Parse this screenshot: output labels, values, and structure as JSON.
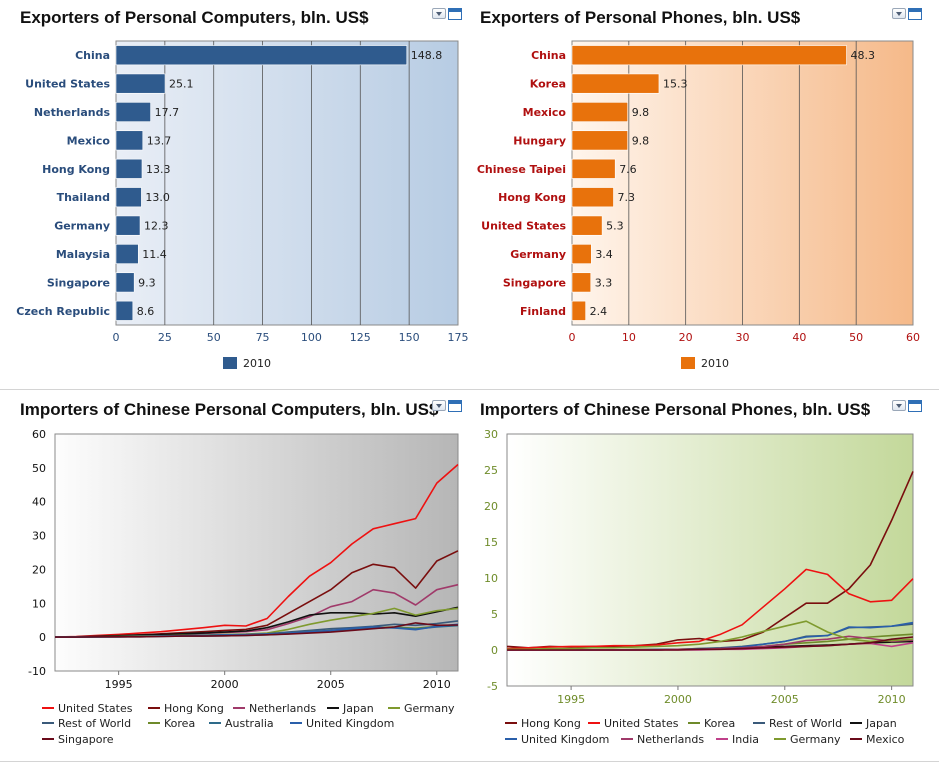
{
  "chart_data": [
    {
      "type": "bar",
      "orientation": "horizontal",
      "title": "Exporters of Personal Computers, bln. US$",
      "categories": [
        "China",
        "United States",
        "Netherlands",
        "Mexico",
        "Hong Kong",
        "Thailand",
        "Germany",
        "Malaysia",
        "Singapore",
        "Czech Republic"
      ],
      "series": [
        {
          "name": "2010",
          "values": [
            148.8,
            25.1,
            17.7,
            13.7,
            13.3,
            13.0,
            12.3,
            11.4,
            9.3,
            8.6
          ]
        }
      ],
      "value_labels": [
        "148.8",
        "25.1",
        "17.7",
        "13.7",
        "13.3",
        "13.0",
        "12.3",
        "11.4",
        "9.3",
        "8.6"
      ],
      "xlim": [
        0,
        175
      ],
      "xticks": [
        0,
        25,
        50,
        75,
        100,
        125,
        150,
        175
      ],
      "grid": true,
      "legend": "bottom",
      "colors": {
        "bar": "#2f5b8e",
        "label": "#2a4d7c",
        "bg_start": "#e9eef6",
        "bg_end": "#b7cce3"
      }
    },
    {
      "type": "bar",
      "orientation": "horizontal",
      "title": "Exporters of Personal Phones, bln. US$",
      "categories": [
        "China",
        "Korea",
        "Mexico",
        "Hungary",
        "Chinese Taipei",
        "Hong Kong",
        "United States",
        "Germany",
        "Singapore",
        "Finland"
      ],
      "series": [
        {
          "name": "2010",
          "values": [
            48.3,
            15.3,
            9.8,
            9.8,
            7.6,
            7.3,
            5.3,
            3.4,
            3.3,
            2.4
          ]
        }
      ],
      "value_labels": [
        "48.3",
        "15.3",
        "9.8",
        "9.8",
        "7.6",
        "7.3",
        "5.3",
        "3.4",
        "3.3",
        "2.4"
      ],
      "xlim": [
        0,
        60
      ],
      "xticks": [
        0,
        10,
        20,
        30,
        40,
        50,
        60
      ],
      "grid": true,
      "legend": "bottom",
      "colors": {
        "bar": "#e8720c",
        "label": "#b01010",
        "bg_start": "#fff5ec",
        "bg_end": "#f5b989"
      }
    },
    {
      "type": "line",
      "title": "Importers of Chinese Personal Computers, bln. US$",
      "x": [
        1992,
        1993,
        1994,
        1995,
        1996,
        1997,
        1998,
        1999,
        2000,
        2001,
        2002,
        2003,
        2004,
        2005,
        2006,
        2007,
        2008,
        2009,
        2010,
        2011
      ],
      "xlim": [
        1992,
        2011
      ],
      "xticks": [
        1995,
        2000,
        2005,
        2010
      ],
      "ylim": [
        -10,
        60
      ],
      "yticks": [
        -10,
        0,
        10,
        20,
        30,
        40,
        50,
        60
      ],
      "grid": false,
      "legend": "bottom",
      "series": [
        {
          "name": "United States",
          "color": "#ee1111",
          "values": [
            0,
            0.2,
            0.5,
            0.8,
            1.2,
            1.6,
            2.2,
            2.8,
            3.5,
            3.3,
            5.5,
            12,
            18,
            22,
            27.5,
            32,
            33.5,
            35,
            45.5,
            51
          ]
        },
        {
          "name": "Hong Kong",
          "color": "#7a0e0e",
          "values": [
            0,
            0.1,
            0.3,
            0.5,
            0.7,
            1,
            1.3,
            1.6,
            2,
            2.3,
            3.5,
            7,
            10.5,
            14,
            19,
            21.5,
            20.5,
            14.5,
            22.5,
            25.5
          ]
        },
        {
          "name": "Netherlands",
          "color": "#a03a6a",
          "values": [
            0,
            0.1,
            0.2,
            0.3,
            0.5,
            0.7,
            0.9,
            1.1,
            1.4,
            1.6,
            2.2,
            4,
            6,
            9,
            10.5,
            14,
            13,
            9.5,
            14,
            15.5
          ]
        },
        {
          "name": "Japan",
          "color": "#111111",
          "values": [
            0,
            0.1,
            0.2,
            0.4,
            0.6,
            0.8,
            1,
            1.2,
            1.5,
            1.8,
            2.8,
            4.5,
            6.5,
            7.2,
            7.2,
            6.8,
            7.2,
            6.2,
            7.5,
            8.8
          ]
        },
        {
          "name": "Germany",
          "color": "#7f9a2e",
          "values": [
            0,
            0,
            0.1,
            0.2,
            0.3,
            0.4,
            0.5,
            0.6,
            0.8,
            0.9,
            1.2,
            2.3,
            3.8,
            5,
            6,
            7,
            8.5,
            6.5,
            7.8,
            8.5
          ]
        },
        {
          "name": "Rest of World",
          "color": "#3a5a7a",
          "values": [
            0,
            0,
            0.1,
            0.1,
            0.2,
            0.3,
            0.4,
            0.5,
            0.7,
            0.8,
            1,
            1.5,
            2,
            2.5,
            2.8,
            3.2,
            3.8,
            3.5,
            4,
            4.8
          ]
        },
        {
          "name": "Korea",
          "color": "#6e8a2a",
          "values": [
            0,
            0,
            0.1,
            0.1,
            0.2,
            0.3,
            0.3,
            0.4,
            0.5,
            0.6,
            0.8,
            1.2,
            1.6,
            2,
            2.4,
            2.8,
            3,
            2.6,
            3.2,
            3.6
          ]
        },
        {
          "name": "Australia",
          "color": "#2e6b8a",
          "values": [
            0,
            0,
            0,
            0.1,
            0.1,
            0.2,
            0.3,
            0.3,
            0.4,
            0.5,
            0.7,
            1,
            1.4,
            1.8,
            2.2,
            2.6,
            2.8,
            2.4,
            3,
            3.4
          ]
        },
        {
          "name": "United Kingdom",
          "color": "#2a5faa",
          "values": [
            0,
            0,
            0.1,
            0.1,
            0.2,
            0.3,
            0.4,
            0.5,
            0.6,
            0.7,
            0.9,
            1.2,
            1.6,
            2,
            2.6,
            3,
            2.7,
            2.2,
            3.2,
            3.8
          ]
        },
        {
          "name": "Singapore",
          "color": "#6a0a1a",
          "values": [
            0,
            0,
            0.1,
            0.1,
            0.1,
            0.2,
            0.3,
            0.3,
            0.4,
            0.5,
            0.7,
            0.9,
            1.2,
            1.5,
            2,
            2.5,
            3,
            4.2,
            3.5,
            3.6
          ]
        }
      ]
    },
    {
      "type": "line",
      "title": "Importers of Chinese Personal Phones, bln. US$",
      "x": [
        1992,
        1993,
        1994,
        1995,
        1996,
        1997,
        1998,
        1999,
        2000,
        2001,
        2002,
        2003,
        2004,
        2005,
        2006,
        2007,
        2008,
        2009,
        2010,
        2011
      ],
      "xlim": [
        1992,
        2011
      ],
      "xticks": [
        1995,
        2000,
        2005,
        2010
      ],
      "ylim": [
        -5,
        30
      ],
      "yticks": [
        -5,
        0,
        5,
        10,
        15,
        20,
        25,
        30
      ],
      "grid": false,
      "legend": "bottom",
      "series": [
        {
          "name": "Hong Kong",
          "color": "#7a0e0e",
          "values": [
            0.5,
            0.3,
            0.5,
            0.4,
            0.5,
            0.5,
            0.6,
            0.8,
            1.4,
            1.6,
            1.2,
            1.4,
            2.5,
            4.5,
            6.5,
            6.5,
            8.5,
            11.8,
            18,
            24.8
          ]
        },
        {
          "name": "United States",
          "color": "#ee1111",
          "values": [
            0.2,
            0.3,
            0.4,
            0.5,
            0.5,
            0.6,
            0.6,
            0.7,
            1,
            1.2,
            2.2,
            3.5,
            6,
            8.5,
            11.2,
            10.5,
            7.8,
            6.7,
            6.9,
            9.9
          ]
        },
        {
          "name": "Korea",
          "color": "#6e8a2a",
          "values": [
            0,
            0,
            0,
            0,
            0,
            0,
            0.1,
            0.1,
            0.1,
            0.2,
            0.2,
            0.3,
            0.5,
            0.8,
            1,
            1.2,
            1.5,
            1.8,
            2,
            2.2
          ]
        },
        {
          "name": "Rest of World",
          "color": "#3a5a7a",
          "values": [
            0,
            0,
            0,
            0,
            0,
            0,
            0,
            0.1,
            0.1,
            0.2,
            0.3,
            0.5,
            0.8,
            1.2,
            1.9,
            2,
            3.1,
            3.2,
            3.3,
            3.6
          ]
        },
        {
          "name": "Japan",
          "color": "#111111",
          "values": [
            0,
            0,
            0,
            0,
            0,
            0,
            0,
            0,
            0.1,
            0.1,
            0.2,
            0.3,
            0.4,
            0.5,
            0.6,
            0.7,
            0.8,
            1,
            1.1,
            1.2
          ]
        },
        {
          "name": "United Kingdom",
          "color": "#2a5faa",
          "values": [
            0,
            0,
            0,
            0,
            0,
            0,
            0,
            0,
            0.1,
            0.1,
            0.2,
            0.4,
            0.8,
            1.2,
            1.8,
            2,
            3.2,
            3.1,
            3.3,
            3.8
          ]
        },
        {
          "name": "Netherlands",
          "color": "#a03a6a",
          "values": [
            0,
            0,
            0,
            0,
            0,
            0,
            0,
            0,
            0.1,
            0.1,
            0.2,
            0.3,
            0.5,
            0.8,
            1.3,
            1.5,
            1.9,
            1.6,
            1.2,
            1.4
          ]
        },
        {
          "name": "India",
          "color": "#c0408a",
          "values": [
            0,
            0,
            0,
            0,
            0,
            0,
            0,
            0,
            0,
            0,
            0.1,
            0.1,
            0.2,
            0.3,
            0.5,
            0.6,
            0.8,
            0.9,
            0.5,
            1
          ]
        },
        {
          "name": "Germany",
          "color": "#7f9a2e",
          "values": [
            0.1,
            0.1,
            0.2,
            0.2,
            0.3,
            0.3,
            0.4,
            0.5,
            0.6,
            0.8,
            1.2,
            1.8,
            2.6,
            3.3,
            4,
            2.5,
            1.5,
            1.2,
            1.3,
            1.5
          ]
        },
        {
          "name": "Mexico",
          "color": "#6a0a1a",
          "values": [
            0,
            0,
            0,
            0,
            0,
            0,
            0,
            0,
            0,
            0.1,
            0.1,
            0.2,
            0.3,
            0.4,
            0.5,
            0.6,
            0.8,
            1,
            1.5,
            1.8
          ]
        }
      ]
    }
  ]
}
